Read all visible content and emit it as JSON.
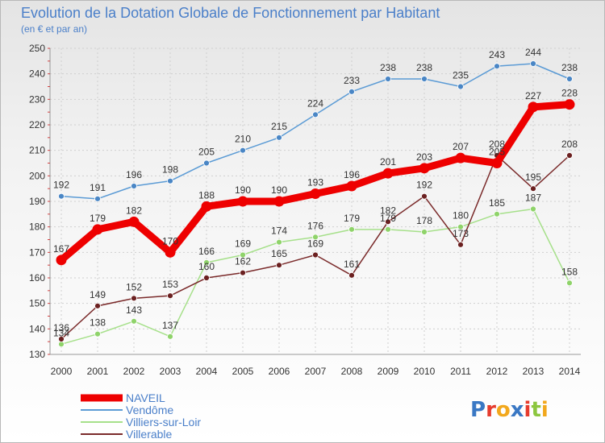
{
  "chart_data": {
    "type": "line",
    "title": "Evolution de la Dotation Globale de Fonctionnement par Habitant",
    "subtitle": "(en € et par an)",
    "xlabel": "",
    "ylabel": "",
    "ylim": [
      130,
      250
    ],
    "yticks": [
      130,
      140,
      150,
      160,
      170,
      180,
      190,
      200,
      210,
      220,
      230,
      240,
      250
    ],
    "categories": [
      "2000",
      "2001",
      "2002",
      "2003",
      "2004",
      "2005",
      "2006",
      "2007",
      "2008",
      "2009",
      "2010",
      "2011",
      "2012",
      "2013",
      "2014"
    ],
    "grid": true,
    "legend_position": "bottom-left",
    "series": [
      {
        "name": "Vendôme",
        "color": "#5b9bd5",
        "marker": "#4a86c5",
        "values": [
          192,
          191,
          196,
          198,
          205,
          210,
          215,
          224,
          233,
          238,
          238,
          235,
          243,
          244,
          238
        ]
      },
      {
        "name": "Villiers-sur-Loir",
        "color": "#a6e08a",
        "marker": "#8fd36a",
        "values": [
          134,
          138,
          143,
          137,
          166,
          169,
          174,
          176,
          179,
          179,
          178,
          180,
          185,
          187,
          158
        ]
      },
      {
        "name": "Villerable",
        "color": "#7a2a2a",
        "marker": "#6b2020",
        "values": [
          136,
          149,
          152,
          153,
          160,
          162,
          165,
          169,
          161,
          182,
          192,
          173,
          208,
          195,
          208
        ]
      },
      {
        "name": "NAVEIL",
        "color": "#ee0000",
        "marker": "#ee0000",
        "values": [
          167,
          179,
          182,
          170,
          188,
          190,
          190,
          193,
          196,
          201,
          203,
          207,
          205,
          227,
          228
        ]
      }
    ]
  },
  "watermark": "Proxiti"
}
